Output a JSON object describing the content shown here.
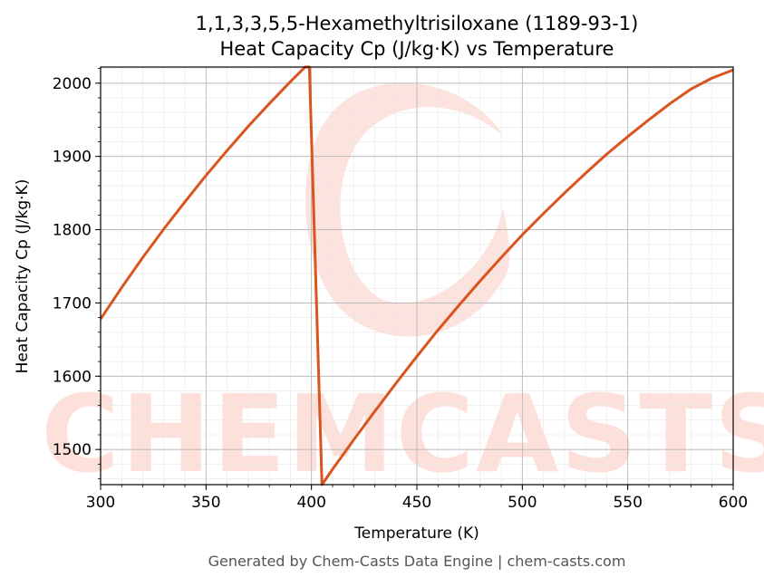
{
  "chart_data": {
    "type": "line",
    "title_lines": [
      "1,1,3,3,5,5-Hexamethyltrisiloxane (1189-93-1)",
      "Heat Capacity Cp (J/kg·K) vs Temperature"
    ],
    "xlabel": "Temperature (K)",
    "ylabel": "Heat Capacity Cp (J/kg·K)",
    "xlim": [
      300,
      600
    ],
    "ylim": [
      1452,
      2022
    ],
    "x_ticks": [
      300,
      350,
      400,
      450,
      500,
      550,
      600
    ],
    "y_ticks": [
      1500,
      1600,
      1700,
      1800,
      1900,
      2000
    ],
    "grid": true,
    "line_color": "#d9541e",
    "series": [
      {
        "x": [
          300,
          310,
          320,
          330,
          340,
          350,
          360,
          370,
          380,
          390,
          397,
          399,
          405,
          410,
          420,
          430,
          440,
          450,
          460,
          470,
          480,
          490,
          500,
          510,
          520,
          530,
          540,
          550,
          560,
          570,
          580,
          590,
          600
        ],
        "values": [
          1678,
          1721,
          1762,
          1801,
          1838,
          1874,
          1908,
          1941,
          1972,
          2002,
          2022,
          2022,
          1452,
          1473,
          1513,
          1552,
          1590,
          1627,
          1663,
          1697,
          1730,
          1762,
          1793,
          1822,
          1850,
          1877,
          1903,
          1927,
          1950,
          1972,
          1992,
          2007,
          2018
        ]
      }
    ]
  },
  "watermark": {
    "text": "CHEMCASTS",
    "color": "#fde0da"
  },
  "footer": "Generated by Chem-Casts Data Engine | chem-casts.com"
}
